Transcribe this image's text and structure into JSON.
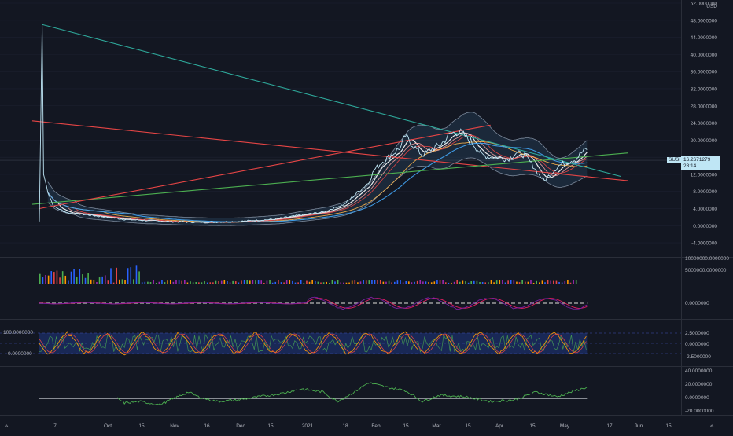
{
  "currency": "USD",
  "symbol_tag": {
    "name": "SUSHIUSD",
    "price": "16.2671279",
    "countdown": "28:14"
  },
  "time_axis": {
    "labels": [
      "7",
      "Oct",
      "15",
      "Nov",
      "16",
      "Dec",
      "15",
      "2021",
      "18",
      "Feb",
      "15",
      "Mar",
      "15",
      "Apr",
      "15",
      "May",
      "17",
      "Jun",
      "15"
    ]
  },
  "panes": {
    "volume": {
      "labels": [
        "10000000.0000000",
        "5000000.0000000"
      ]
    },
    "macd": {
      "labels": [
        "0.0000000"
      ]
    },
    "stoch": {
      "left_labels": [
        "100.0000000",
        "0.0000000"
      ],
      "right_labels": [
        "2.5000000",
        "0.0000000",
        "-2.5000000"
      ]
    },
    "osc": {
      "labels": [
        "40.0000000",
        "20.0000000",
        "0.0000000",
        "-20.0000000"
      ]
    }
  },
  "footer": {
    "left_icon": "z-icon",
    "right_icon": "a-icon"
  },
  "colors": {
    "bg": "#131722",
    "price": "#bfe6f5",
    "trend_teal": "#2ea89a",
    "trend_red": "#e64545",
    "trend_green": "#4caf50",
    "bb": "#7d8a9c"
  },
  "chart_data": {
    "type": "line",
    "title": "",
    "ylabel": "USD",
    "ylim": [
      -6,
      52
    ],
    "yticks": [
      "52.0000000",
      "48.0000000",
      "44.0000000",
      "40.0000000",
      "36.0000000",
      "32.0000000",
      "28.0000000",
      "24.0000000",
      "20.0000000",
      "16.0000000",
      "12.0000000",
      "8.0000000",
      "4.0000000",
      "0.0000000",
      "-4.0000000"
    ],
    "last_price": 16.2671279,
    "series": [
      {
        "values": [
          [
            0,
            1
          ],
          [
            2,
            47
          ],
          [
            3,
            12
          ],
          [
            6,
            8
          ],
          [
            10,
            4.5
          ],
          [
            20,
            3
          ],
          [
            35,
            2.5
          ],
          [
            60,
            1.5
          ],
          [
            90,
            1
          ],
          [
            115,
            0.8
          ],
          [
            140,
            1
          ],
          [
            165,
            1.5
          ],
          [
            185,
            2.5
          ],
          [
            200,
            3.2
          ],
          [
            215,
            5
          ],
          [
            225,
            8
          ],
          [
            232,
            10
          ],
          [
            236,
            13
          ],
          [
            242,
            15
          ],
          [
            250,
            17
          ],
          [
            255,
            18.5
          ],
          [
            258,
            21
          ],
          [
            264,
            18.5
          ],
          [
            270,
            16.5
          ],
          [
            277,
            18
          ],
          [
            283,
            19
          ],
          [
            290,
            21.5
          ],
          [
            296,
            22
          ],
          [
            300,
            21
          ],
          [
            305,
            19.5
          ],
          [
            312,
            16.5
          ],
          [
            318,
            16
          ],
          [
            324,
            16
          ],
          [
            330,
            15.5
          ],
          [
            336,
            17
          ],
          [
            342,
            16.5
          ],
          [
            348,
            14
          ],
          [
            352,
            12
          ],
          [
            356,
            10.5
          ],
          [
            360,
            12
          ],
          [
            366,
            14
          ],
          [
            372,
            15
          ],
          [
            378,
            15.5
          ],
          [
            382,
            17
          ],
          [
            386,
            18
          ]
        ]
      }
    ],
    "trendlines": [
      {
        "from": [
          2,
          47
        ],
        "to": [
          410,
          11.5
        ]
      },
      {
        "from": [
          -5,
          24.5
        ],
        "to": [
          415,
          10.5
        ]
      },
      {
        "from": [
          -5,
          5
        ],
        "to": [
          415,
          17
        ]
      },
      {
        "from": [
          0,
          4
        ],
        "to": [
          318,
          23.5
        ]
      }
    ]
  }
}
